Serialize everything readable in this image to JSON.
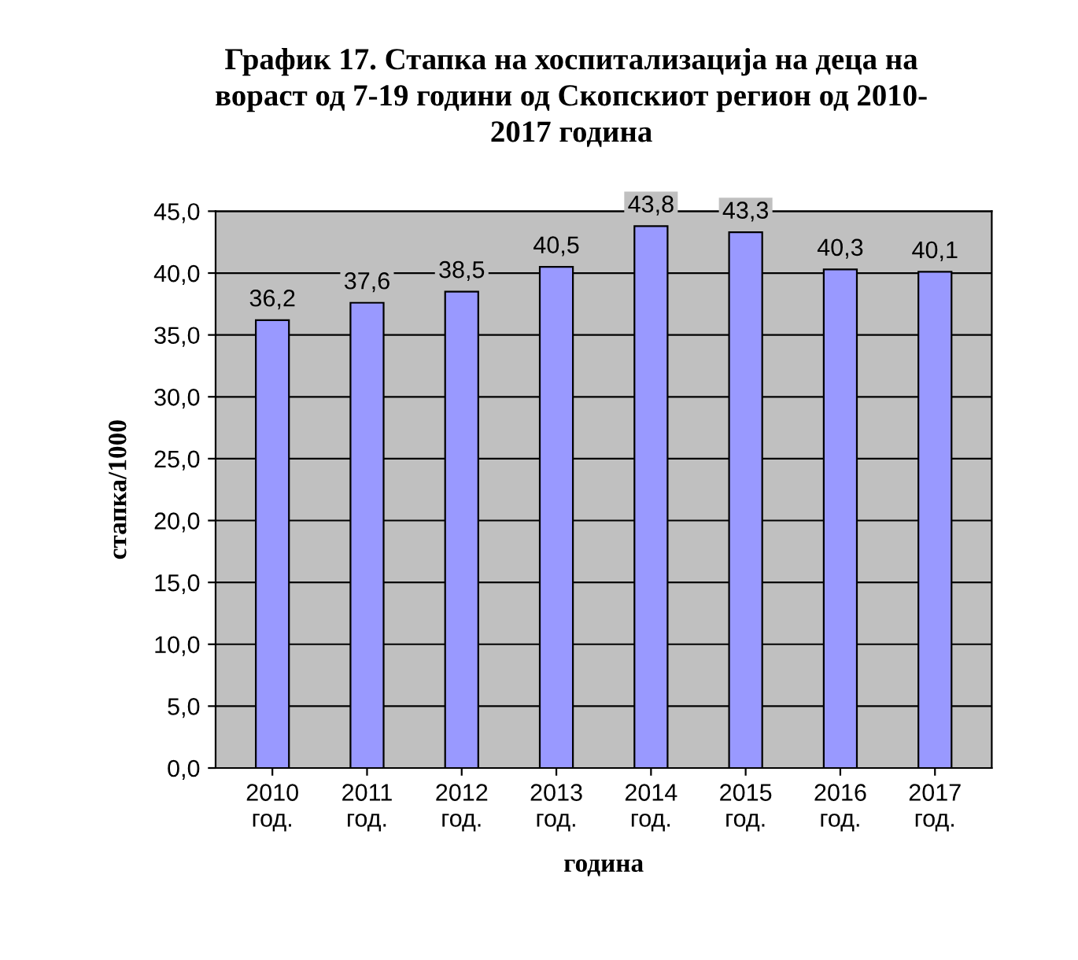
{
  "chart_data": {
    "type": "bar",
    "title": "График 17. Стапка на хоспитализација на деца на\nвораст од 7-19 години од Скопскиот регион од 2010-\n2017 година",
    "xlabel": "година",
    "ylabel": "стапка/1000",
    "categories": [
      "2010\nгод.",
      "2011\nгод.",
      "2012\nгод.",
      "2013\nгод.",
      "2014\nгод.",
      "2015\nгод.",
      "2016\nгод.",
      "2017\nгод."
    ],
    "values": [
      36.2,
      37.6,
      38.5,
      40.5,
      43.8,
      43.3,
      40.3,
      40.1
    ],
    "value_labels": [
      "36,2",
      "37,6",
      "38,5",
      "40,5",
      "43,8",
      "43,3",
      "40,3",
      "40,1"
    ],
    "color": "#9999ff",
    "ylim": [
      0,
      45
    ],
    "yticks": [
      {
        "value": 0,
        "label": "0,0"
      },
      {
        "value": 5,
        "label": "5,0"
      },
      {
        "value": 10,
        "label": "10,0"
      },
      {
        "value": 15,
        "label": "15,0"
      },
      {
        "value": 20,
        "label": "20,0"
      },
      {
        "value": 25,
        "label": "25,0"
      },
      {
        "value": 30,
        "label": "30,0"
      },
      {
        "value": 35,
        "label": "35,0"
      },
      {
        "value": 40,
        "label": "40,0"
      },
      {
        "value": 45,
        "label": "45,0"
      }
    ],
    "grid": "y"
  }
}
